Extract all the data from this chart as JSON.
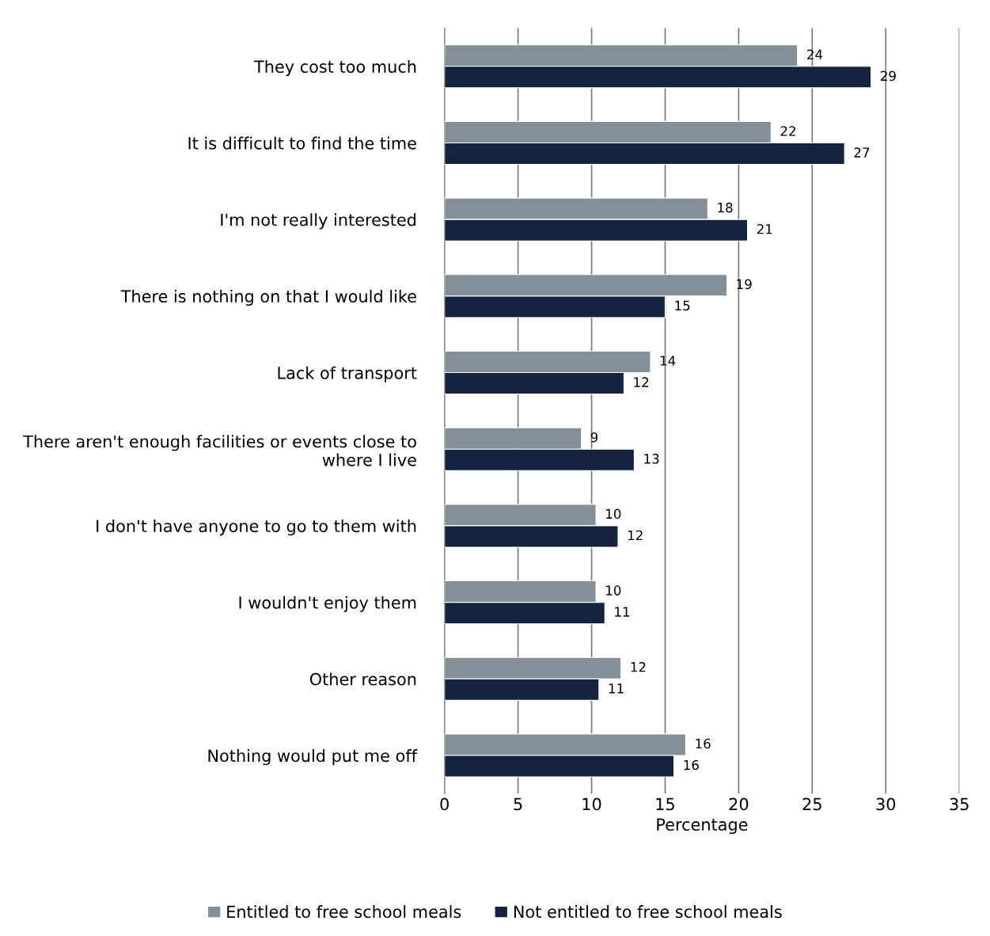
{
  "chart_data": {
    "type": "bar",
    "orientation": "horizontal",
    "xlabel": "Percentage",
    "categories": [
      "They cost too much",
      "It is difficult to find the time",
      "I'm not really interested",
      "There is nothing on that I would like",
      "Lack of transport",
      "There aren't enough facilities or events close to where I live",
      "I don't have anyone to go to them with",
      "I wouldn't enjoy them",
      "Other reason",
      "Nothing would put me off"
    ],
    "series": [
      {
        "name": "Entitled to free school meals",
        "color": "#858f99",
        "values": [
          24.0,
          22.2,
          17.9,
          19.2,
          14.0,
          9.3,
          10.3,
          10.3,
          12.0,
          16.4
        ],
        "value_labels": [
          "24",
          "22",
          "18",
          "19",
          "14",
          "9",
          "10",
          "10",
          "12",
          "16"
        ]
      },
      {
        "name": "Not entitled to free school meals",
        "color": "#14243f",
        "values": [
          29.0,
          27.2,
          20.6,
          15.0,
          12.2,
          12.9,
          11.8,
          10.9,
          10.5,
          15.6
        ],
        "value_labels": [
          "29",
          "27",
          "21",
          "15",
          "12",
          "13",
          "12",
          "11",
          "11",
          "16"
        ]
      }
    ],
    "xlim": [
      0,
      35
    ],
    "xticks": [
      0,
      5,
      10,
      15,
      20,
      25,
      30,
      35
    ],
    "grid": "x",
    "legend": "bottom"
  }
}
